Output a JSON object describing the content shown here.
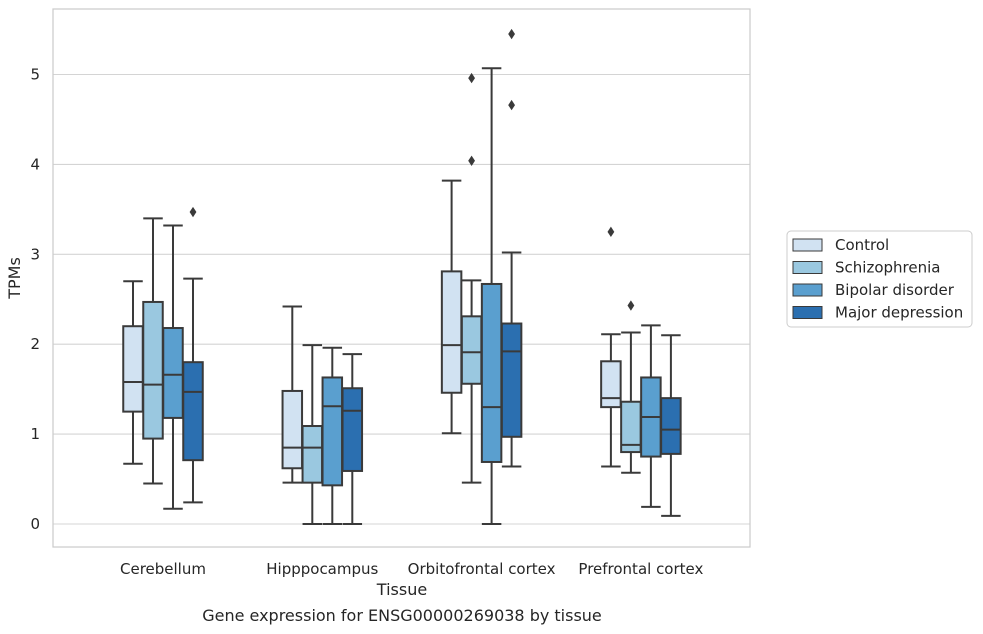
{
  "chart_data": {
    "type": "box",
    "caption": "Gene expression for ENSG00000269038 by tissue",
    "xlabel": "Tissue",
    "ylabel": "TPMs",
    "ylim": [
      -0.25,
      5.75
    ],
    "yticks": [
      0,
      1,
      2,
      3,
      4,
      5
    ],
    "grid": true,
    "legend_position": "right",
    "categories": [
      "Cerebellum",
      "Hipppocampus",
      "Orbitofrontal cortex",
      "Prefrontal cortex"
    ],
    "series": [
      {
        "name": "Control",
        "color": "#d1e2f2",
        "boxes": [
          {
            "whisker_low": 0.67,
            "q1": 1.25,
            "median": 1.58,
            "q3": 2.2,
            "whisker_high": 2.7,
            "outliers": []
          },
          {
            "whisker_low": 0.46,
            "q1": 0.62,
            "median": 0.85,
            "q3": 1.48,
            "whisker_high": 2.42,
            "outliers": []
          },
          {
            "whisker_low": 1.01,
            "q1": 1.46,
            "median": 1.99,
            "q3": 2.81,
            "whisker_high": 3.82,
            "outliers": []
          },
          {
            "whisker_low": 0.64,
            "q1": 1.3,
            "median": 1.4,
            "q3": 1.81,
            "whisker_high": 2.11,
            "outliers": [
              3.25
            ]
          }
        ]
      },
      {
        "name": "Schizophrenia",
        "color": "#9ac8e0",
        "boxes": [
          {
            "whisker_low": 0.45,
            "q1": 0.95,
            "median": 1.55,
            "q3": 2.47,
            "whisker_high": 3.4,
            "outliers": []
          },
          {
            "whisker_low": 0.0,
            "q1": 0.46,
            "median": 0.85,
            "q3": 1.09,
            "whisker_high": 1.99,
            "outliers": []
          },
          {
            "whisker_low": 0.46,
            "q1": 1.56,
            "median": 1.91,
            "q3": 2.31,
            "whisker_high": 2.71,
            "outliers": [
              4.04,
              4.96
            ]
          },
          {
            "whisker_low": 0.57,
            "q1": 0.8,
            "median": 0.88,
            "q3": 1.36,
            "whisker_high": 2.13,
            "outliers": [
              2.43
            ]
          }
        ]
      },
      {
        "name": "Bipolar disorder",
        "color": "#5a9fcf",
        "boxes": [
          {
            "whisker_low": 0.17,
            "q1": 1.18,
            "median": 1.66,
            "q3": 2.18,
            "whisker_high": 3.32,
            "outliers": []
          },
          {
            "whisker_low": 0.0,
            "q1": 0.43,
            "median": 1.31,
            "q3": 1.63,
            "whisker_high": 1.96,
            "outliers": []
          },
          {
            "whisker_low": 0.0,
            "q1": 0.69,
            "median": 1.3,
            "q3": 2.67,
            "whisker_high": 5.07,
            "outliers": []
          },
          {
            "whisker_low": 0.19,
            "q1": 0.75,
            "median": 1.19,
            "q3": 1.63,
            "whisker_high": 2.21,
            "outliers": []
          }
        ]
      },
      {
        "name": "Major depression",
        "color": "#2b6fb0",
        "boxes": [
          {
            "whisker_low": 0.24,
            "q1": 0.71,
            "median": 1.47,
            "q3": 1.8,
            "whisker_high": 2.73,
            "outliers": [
              3.47
            ]
          },
          {
            "whisker_low": 0.0,
            "q1": 0.59,
            "median": 1.26,
            "q3": 1.51,
            "whisker_high": 1.89,
            "outliers": []
          },
          {
            "whisker_low": 0.64,
            "q1": 0.97,
            "median": 1.92,
            "q3": 2.23,
            "whisker_high": 3.02,
            "outliers": [
              4.66,
              5.45
            ]
          },
          {
            "whisker_low": 0.09,
            "q1": 0.78,
            "median": 1.05,
            "q3": 1.4,
            "whisker_high": 2.1,
            "outliers": []
          }
        ]
      }
    ]
  }
}
